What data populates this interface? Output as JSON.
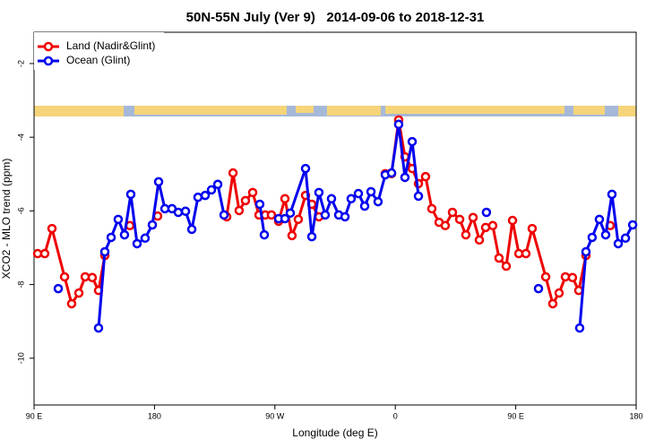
{
  "chart_data": {
    "type": "line",
    "title": "50N-55N July (Ver 9)   2014-09-06 to 2018-12-31",
    "x_label": "Longitude (deg E)",
    "y_label": "XCO2 - MLO trend (ppm)",
    "xlim": [
      90,
      540
    ],
    "xticks": [
      {
        "value": 90,
        "label": "90 E"
      },
      180,
      {
        "value": 270,
        "label": "90 W"
      },
      {
        "value": 360,
        "label": "0"
      },
      {
        "value": 450,
        "label": "90 E"
      },
      {
        "value": 540,
        "label": "180"
      }
    ],
    "ylim": [
      -11.27,
      -1.15
    ],
    "yticks": [
      -2,
      -4,
      -6,
      -8,
      -10
    ],
    "legend": "top-left",
    "series": [
      {
        "name": "Land (Nadir&Glint)",
        "color": "#ee0000",
        "x": [
          92.7,
          98.0,
          103.4,
          112.8,
          118.1,
          123.5,
          128.2,
          133.5,
          138.2,
          142.9,
          null,
          161.6,
          null,
          182.4,
          null,
          234.0,
          238.7,
          243.3,
          248.0,
          253.4,
          258.1,
          262.8,
          267.4,
          272.8,
          277.5,
          282.8,
          287.5,
          292.9,
          297.6,
          302.9,
          null,
          352.5,
          357.2,
          362.5,
          367.2,
          372.6,
          377.3,
          382.6,
          387.3,
          392.7,
          397.3,
          402.7,
          408.1,
          412.7,
          418.1,
          422.8,
          427.5,
          432.8,
          437.5,
          442.9,
          447.6,
          452.3,
          457.6,
          462.3,
          472.4,
          477.7,
          482.4,
          487.1,
          492.4,
          497.1,
          502.5,
          null,
          520.6
        ],
        "values": [
          -7.16,
          -7.16,
          -6.48,
          -7.79,
          -8.52,
          -8.23,
          -7.79,
          -7.81,
          -8.16,
          -7.21,
          null,
          -6.4,
          null,
          -6.14,
          null,
          -6.16,
          -4.97,
          -5.99,
          -5.72,
          -5.5,
          -6.11,
          -6.11,
          -6.11,
          -6.28,
          -5.67,
          -6.67,
          -6.23,
          -5.58,
          -5.82,
          -6.16,
          null,
          -4.99,
          -4.99,
          -3.53,
          -4.53,
          -4.85,
          -5.26,
          -5.07,
          -5.94,
          -6.31,
          -6.4,
          -6.04,
          -6.23,
          -6.65,
          -6.18,
          -6.79,
          -6.45,
          -6.4,
          -7.28,
          -7.5,
          -6.26,
          -7.16,
          -7.16,
          -6.48,
          -7.79,
          -8.52,
          -8.23,
          -7.79,
          -7.81,
          -8.16,
          -7.21,
          null,
          -6.4
        ]
      },
      {
        "name": "Ocean (Glint)",
        "color": "#0000ee",
        "x": [
          108.1,
          null,
          138.2,
          142.9,
          147.6,
          152.9,
          157.6,
          162.3,
          167.0,
          173.0,
          178.4,
          183.1,
          187.8,
          193.1,
          197.8,
          203.2,
          207.9,
          212.5,
          217.9,
          222.6,
          227.3,
          232.0,
          null,
          258.7,
          262.1,
          null,
          272.8,
          277.5,
          281.5,
          292.9,
          297.6,
          302.9,
          307.6,
          312.3,
          317.7,
          322.4,
          327.0,
          332.4,
          337.1,
          341.8,
          347.1,
          352.5,
          357.2,
          362.5,
          367.2,
          372.6,
          377.3,
          null,
          428.1,
          null,
          467.0,
          null,
          497.8,
          502.5,
          507.1,
          512.5,
          517.2,
          521.9,
          526.6,
          532.0,
          537.4
        ],
        "values": [
          -8.11,
          null,
          -9.18,
          -7.11,
          -6.72,
          -6.23,
          -6.65,
          -5.55,
          -6.89,
          -6.74,
          -6.38,
          -5.21,
          -5.94,
          -5.94,
          -6.04,
          -6.01,
          -6.5,
          -5.63,
          -5.58,
          -5.43,
          -5.28,
          -6.11,
          null,
          -5.82,
          -6.65,
          null,
          -6.21,
          -6.21,
          -6.06,
          -4.85,
          -6.7,
          -5.5,
          -6.11,
          -5.67,
          -6.11,
          -6.16,
          -5.67,
          -5.53,
          -5.87,
          -5.48,
          -5.75,
          -5.02,
          -4.97,
          -3.65,
          -5.09,
          -4.12,
          -5.6,
          null,
          -6.04,
          null,
          -8.11,
          null,
          -9.18,
          -7.11,
          -6.72,
          -6.23,
          -6.65,
          -5.55,
          -6.89,
          -6.74,
          -6.38
        ]
      }
    ]
  }
}
